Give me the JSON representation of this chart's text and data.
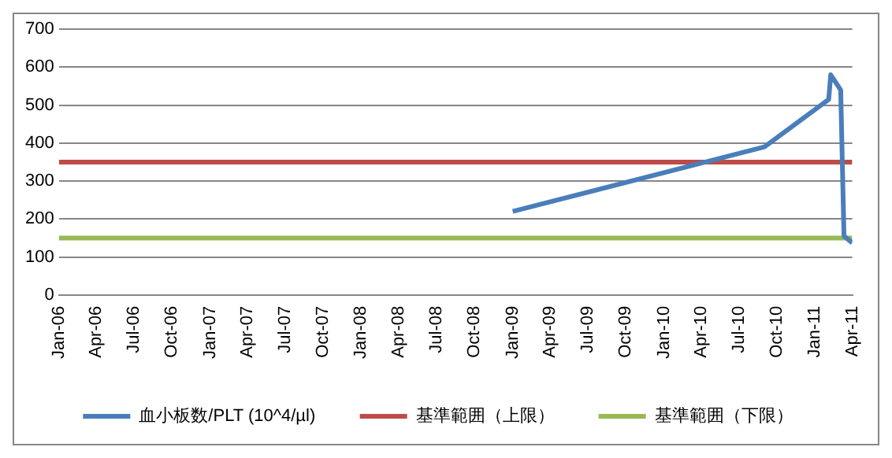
{
  "chart_data": {
    "type": "line",
    "x": [
      "2009-01-01",
      "2010-09-01",
      "2011-02-03",
      "2011-02-08",
      "2011-03-04",
      "2011-03-12",
      "2011-04-01"
    ],
    "series": [
      {
        "name": "血小板数/PLT (10^4/µl)",
        "color": "#4a7ebb",
        "values": [
          220,
          390,
          515,
          580,
          540,
          155,
          137
        ]
      }
    ],
    "ref_lines": [
      {
        "axis": "y",
        "value": 350,
        "label": "基準範囲（上限）",
        "color": "#be4b48"
      },
      {
        "axis": "y",
        "value": 150,
        "label": "基準範囲（下限）",
        "color": "#98b954"
      }
    ],
    "xlim": [
      "2006-01-01",
      "2011-04-01"
    ],
    "xticks": [
      {
        "value": "2006-01",
        "label": "Jan-06"
      },
      {
        "value": "2006-04",
        "label": "Apr-06"
      },
      {
        "value": "2006-07",
        "label": "Jul-06"
      },
      {
        "value": "2006-10",
        "label": "Oct-06"
      },
      {
        "value": "2007-01",
        "label": "Jan-07"
      },
      {
        "value": "2007-04",
        "label": "Apr-07"
      },
      {
        "value": "2007-07",
        "label": "Jul-07"
      },
      {
        "value": "2007-10",
        "label": "Oct-07"
      },
      {
        "value": "2008-01",
        "label": "Jan-08"
      },
      {
        "value": "2008-04",
        "label": "Apr-08"
      },
      {
        "value": "2008-07",
        "label": "Jul-08"
      },
      {
        "value": "2008-10",
        "label": "Oct-08"
      },
      {
        "value": "2009-01",
        "label": "Jan-09"
      },
      {
        "value": "2009-04",
        "label": "Apr-09"
      },
      {
        "value": "2009-07",
        "label": "Jul-09"
      },
      {
        "value": "2009-10",
        "label": "Oct-09"
      },
      {
        "value": "2010-01",
        "label": "Jan-10"
      },
      {
        "value": "2010-04",
        "label": "Apr-10"
      },
      {
        "value": "2010-07",
        "label": "Jul-10"
      },
      {
        "value": "2010-10",
        "label": "Oct-10"
      },
      {
        "value": "2011-01",
        "label": "Jan-11"
      },
      {
        "value": "2011-04",
        "label": "Apr-11"
      }
    ],
    "ylim": [
      0,
      700
    ],
    "yticks": [
      0,
      100,
      200,
      300,
      400,
      500,
      600,
      700
    ],
    "grid": "y",
    "legend": "bottom",
    "marker": "none",
    "line_style": "solid"
  }
}
